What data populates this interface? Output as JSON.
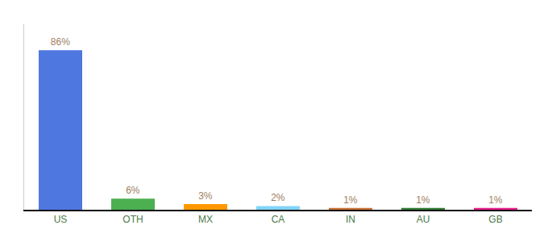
{
  "chart_data": {
    "type": "bar",
    "categories": [
      "US",
      "OTH",
      "MX",
      "CA",
      "IN",
      "AU",
      "GB"
    ],
    "values": [
      86,
      6,
      3,
      2,
      1,
      1,
      1
    ],
    "value_labels": [
      "86%",
      "6%",
      "3%",
      "2%",
      "1%",
      "1%",
      "1%"
    ],
    "colors": [
      "#4f77e0",
      "#4caf50",
      "#ff9800",
      "#81d4fa",
      "#c87137",
      "#2e7d32",
      "#e91e8c"
    ],
    "ylim": [
      0,
      100
    ],
    "data_labels": true,
    "tick_labels": "x",
    "grid": false
  }
}
